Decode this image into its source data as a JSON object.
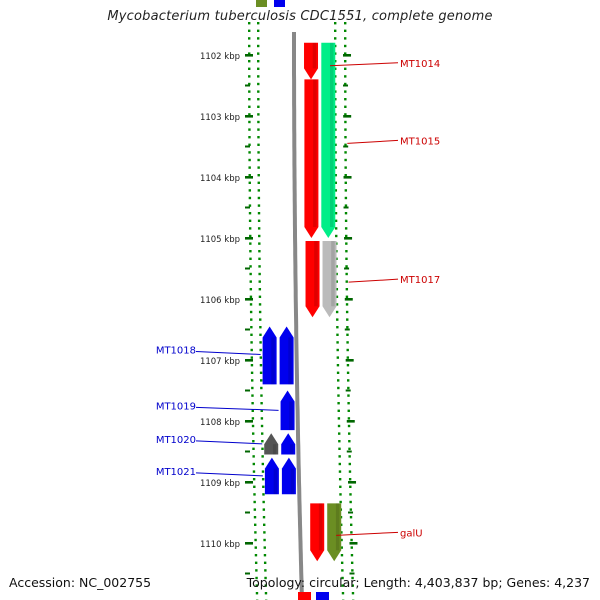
{
  "title": "Mycobacterium tuberculosis CDC1551, complete genome",
  "footer": {
    "accession": "Accession: NC_002755",
    "topology": "Topology: circular; Length: 4,403,837 bp; Genes: 4,237"
  },
  "axis": {
    "unit_label": "kbp",
    "ticks": [
      "1102 kbp",
      "1103 kbp",
      "1104 kbp",
      "1105 kbp",
      "1106 kbp",
      "1107 kbp",
      "1108 kbp",
      "1109 kbp",
      "1110 kbp"
    ],
    "start_kbp": 1101.3,
    "end_kbp": 1110.9
  },
  "colors": {
    "forward_red": "#ff0000",
    "cds_teal": "#00ee88",
    "cds_grey": "#bbbbbb",
    "reverse_blue": "#0000ee",
    "reverse_dark": "#555555",
    "galU_olive": "#6b8e23",
    "tick_green": "#006600",
    "label_red": "#cc0000",
    "label_blue": "#0000cc",
    "backbone": "#888888"
  },
  "genes": [
    {
      "label": "MT1014",
      "strand": "forward",
      "side": "right",
      "color": "#ff0000",
      "track": "inner",
      "start": 1101.8,
      "end": 1102.4
    },
    {
      "label": "",
      "strand": "forward",
      "side": "right",
      "color": "#ff0000",
      "track": "inner",
      "start": 1102.4,
      "end": 1105.0
    },
    {
      "label": "",
      "strand": "forward",
      "side": "right",
      "color": "#ff0000",
      "track": "inner",
      "start": 1105.05,
      "end": 1106.3
    },
    {
      "label": "MT1015",
      "strand": "forward",
      "side": "right",
      "color": "#00ee88",
      "track": "outer",
      "start": 1101.8,
      "end": 1105.0
    },
    {
      "label": "MT1017",
      "strand": "forward",
      "side": "right",
      "color": "#bbbbbb",
      "track": "outer",
      "start": 1105.05,
      "end": 1106.3
    },
    {
      "label": "MT1018",
      "strand": "reverse",
      "side": "left",
      "color": "#0000ee",
      "track": "outer",
      "start": 1106.45,
      "end": 1107.4
    },
    {
      "label": "",
      "strand": "reverse",
      "side": "left",
      "color": "#0000ee",
      "track": "inner",
      "start": 1106.45,
      "end": 1107.4
    },
    {
      "label": "MT1019",
      "strand": "reverse",
      "side": "left",
      "color": "#0000ee",
      "track": "inner",
      "start": 1107.5,
      "end": 1108.15
    },
    {
      "label": "MT1020",
      "strand": "reverse",
      "side": "left",
      "color": "#555555",
      "track": "outer",
      "start": 1108.2,
      "end": 1108.55
    },
    {
      "label": "",
      "strand": "reverse",
      "side": "left",
      "color": "#0000ee",
      "track": "inner",
      "start": 1108.2,
      "end": 1108.55
    },
    {
      "label": "MT1021",
      "strand": "reverse",
      "side": "left",
      "color": "#0000ee",
      "track": "outer",
      "start": 1108.6,
      "end": 1109.2
    },
    {
      "label": "",
      "strand": "reverse",
      "side": "left",
      "color": "#0000ee",
      "track": "inner",
      "start": 1108.6,
      "end": 1109.2
    },
    {
      "label": "galU",
      "strand": "forward",
      "side": "right",
      "color": "#ff0000",
      "track": "inner",
      "start": 1109.35,
      "end": 1110.3
    },
    {
      "label": "",
      "strand": "forward",
      "side": "right",
      "color": "#6b8e23",
      "track": "outer",
      "start": 1109.35,
      "end": 1110.3
    }
  ]
}
